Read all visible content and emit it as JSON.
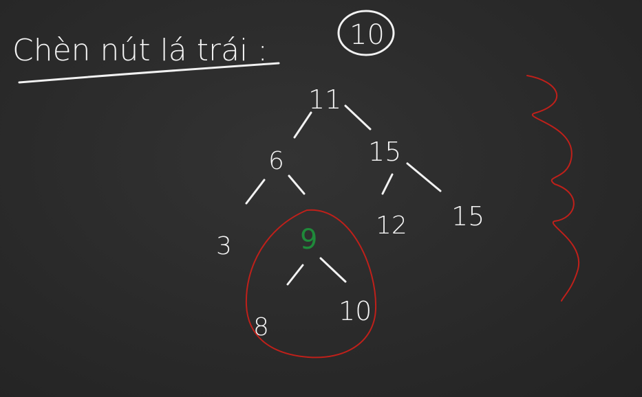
{
  "heading": {
    "text": "Chèn nút lá trái :",
    "circled_value": "10"
  },
  "tree": {
    "root": "11",
    "left": "6",
    "right": "15",
    "left_left": "3",
    "left_right": "9",
    "right_left": "12",
    "right_right": "15",
    "left_right_left": "8",
    "left_right_right": "10"
  },
  "colors": {
    "board": "#2b2b2b",
    "chalk": "#f2f2f2",
    "highlight_node": "#1f8a3a",
    "annotation": "#c0201a"
  }
}
